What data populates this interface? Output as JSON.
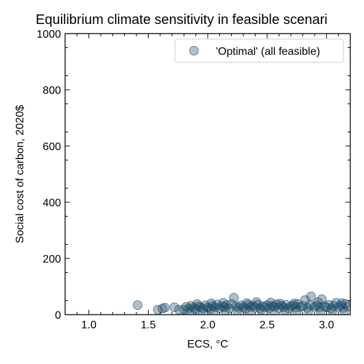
{
  "chart_data": {
    "type": "scatter",
    "title": "Equilibrium climate sensitivity in feasible scenari",
    "xlabel": "ECS, °C",
    "ylabel": "Social cost of carbon, 2020$",
    "xlim": [
      0.8,
      3.2
    ],
    "ylim": [
      0,
      1000
    ],
    "x_ticks": [
      "1.0",
      "1.5",
      "2.0",
      "2.5",
      "3.0"
    ],
    "y_ticks": [
      "0",
      "200",
      "400",
      "600",
      "800",
      "1000"
    ],
    "grid": false,
    "legend_position": "top-right",
    "series": [
      {
        "name": "'Optimal' (all feasible)",
        "color": "#1a4a66",
        "marker": "circle",
        "points": [
          [
            1.41,
            34
          ],
          [
            1.58,
            17
          ],
          [
            1.62,
            22
          ],
          [
            1.64,
            25
          ],
          [
            1.72,
            26
          ],
          [
            1.76,
            17
          ],
          [
            1.8,
            18
          ],
          [
            1.82,
            28
          ],
          [
            1.84,
            21
          ],
          [
            1.86,
            31
          ],
          [
            1.88,
            24
          ],
          [
            1.9,
            19
          ],
          [
            1.92,
            30
          ],
          [
            1.94,
            26
          ],
          [
            1.96,
            22
          ],
          [
            1.98,
            33
          ],
          [
            2.0,
            25
          ],
          [
            2.02,
            20
          ],
          [
            2.04,
            31
          ],
          [
            2.06,
            27
          ],
          [
            2.08,
            36
          ],
          [
            2.1,
            23
          ],
          [
            2.12,
            30
          ],
          [
            2.14,
            26
          ],
          [
            2.16,
            34
          ],
          [
            2.18,
            22
          ],
          [
            2.2,
            38
          ],
          [
            2.22,
            60
          ],
          [
            2.24,
            29
          ],
          [
            2.26,
            24
          ],
          [
            2.28,
            33
          ],
          [
            2.3,
            27
          ],
          [
            2.32,
            21
          ],
          [
            2.34,
            35
          ],
          [
            2.36,
            28
          ],
          [
            2.38,
            31
          ],
          [
            2.4,
            25
          ],
          [
            2.42,
            36
          ],
          [
            2.44,
            22
          ],
          [
            2.46,
            30
          ],
          [
            2.48,
            27
          ],
          [
            2.5,
            34
          ],
          [
            2.52,
            23
          ],
          [
            2.54,
            31
          ],
          [
            2.56,
            28
          ],
          [
            2.58,
            37
          ],
          [
            2.6,
            24
          ],
          [
            2.62,
            32
          ],
          [
            2.64,
            26
          ],
          [
            2.66,
            35
          ],
          [
            2.68,
            22
          ],
          [
            2.7,
            29
          ],
          [
            2.72,
            33
          ],
          [
            2.74,
            25
          ],
          [
            2.76,
            38
          ],
          [
            2.78,
            27
          ],
          [
            2.8,
            31
          ],
          [
            2.82,
            52
          ],
          [
            2.84,
            24
          ],
          [
            2.86,
            34
          ],
          [
            2.87,
            65
          ],
          [
            2.9,
            28
          ],
          [
            2.92,
            33
          ],
          [
            2.94,
            25
          ],
          [
            2.96,
            55
          ],
          [
            2.98,
            30
          ],
          [
            3.0,
            26
          ],
          [
            3.02,
            35
          ],
          [
            3.04,
            22
          ],
          [
            3.06,
            31
          ],
          [
            3.08,
            42
          ],
          [
            3.1,
            27
          ],
          [
            3.12,
            33
          ],
          [
            3.14,
            24
          ],
          [
            3.16,
            38
          ],
          [
            3.18,
            29
          ],
          [
            1.85,
            12
          ],
          [
            1.95,
            14
          ],
          [
            2.05,
            11
          ],
          [
            2.15,
            15
          ],
          [
            2.25,
            13
          ],
          [
            2.35,
            12
          ],
          [
            2.45,
            16
          ],
          [
            2.55,
            13
          ],
          [
            2.65,
            14
          ],
          [
            2.75,
            12
          ],
          [
            2.85,
            15
          ],
          [
            2.95,
            13
          ],
          [
            3.05,
            14
          ],
          [
            3.15,
            12
          ],
          [
            2.03,
            40
          ],
          [
            2.13,
            42
          ],
          [
            2.33,
            41
          ],
          [
            2.53,
            43
          ],
          [
            2.73,
            40
          ],
          [
            2.93,
            44
          ],
          [
            3.13,
            41
          ],
          [
            1.91,
            38
          ],
          [
            2.41,
            45
          ],
          [
            2.61,
            39
          ]
        ]
      }
    ]
  }
}
